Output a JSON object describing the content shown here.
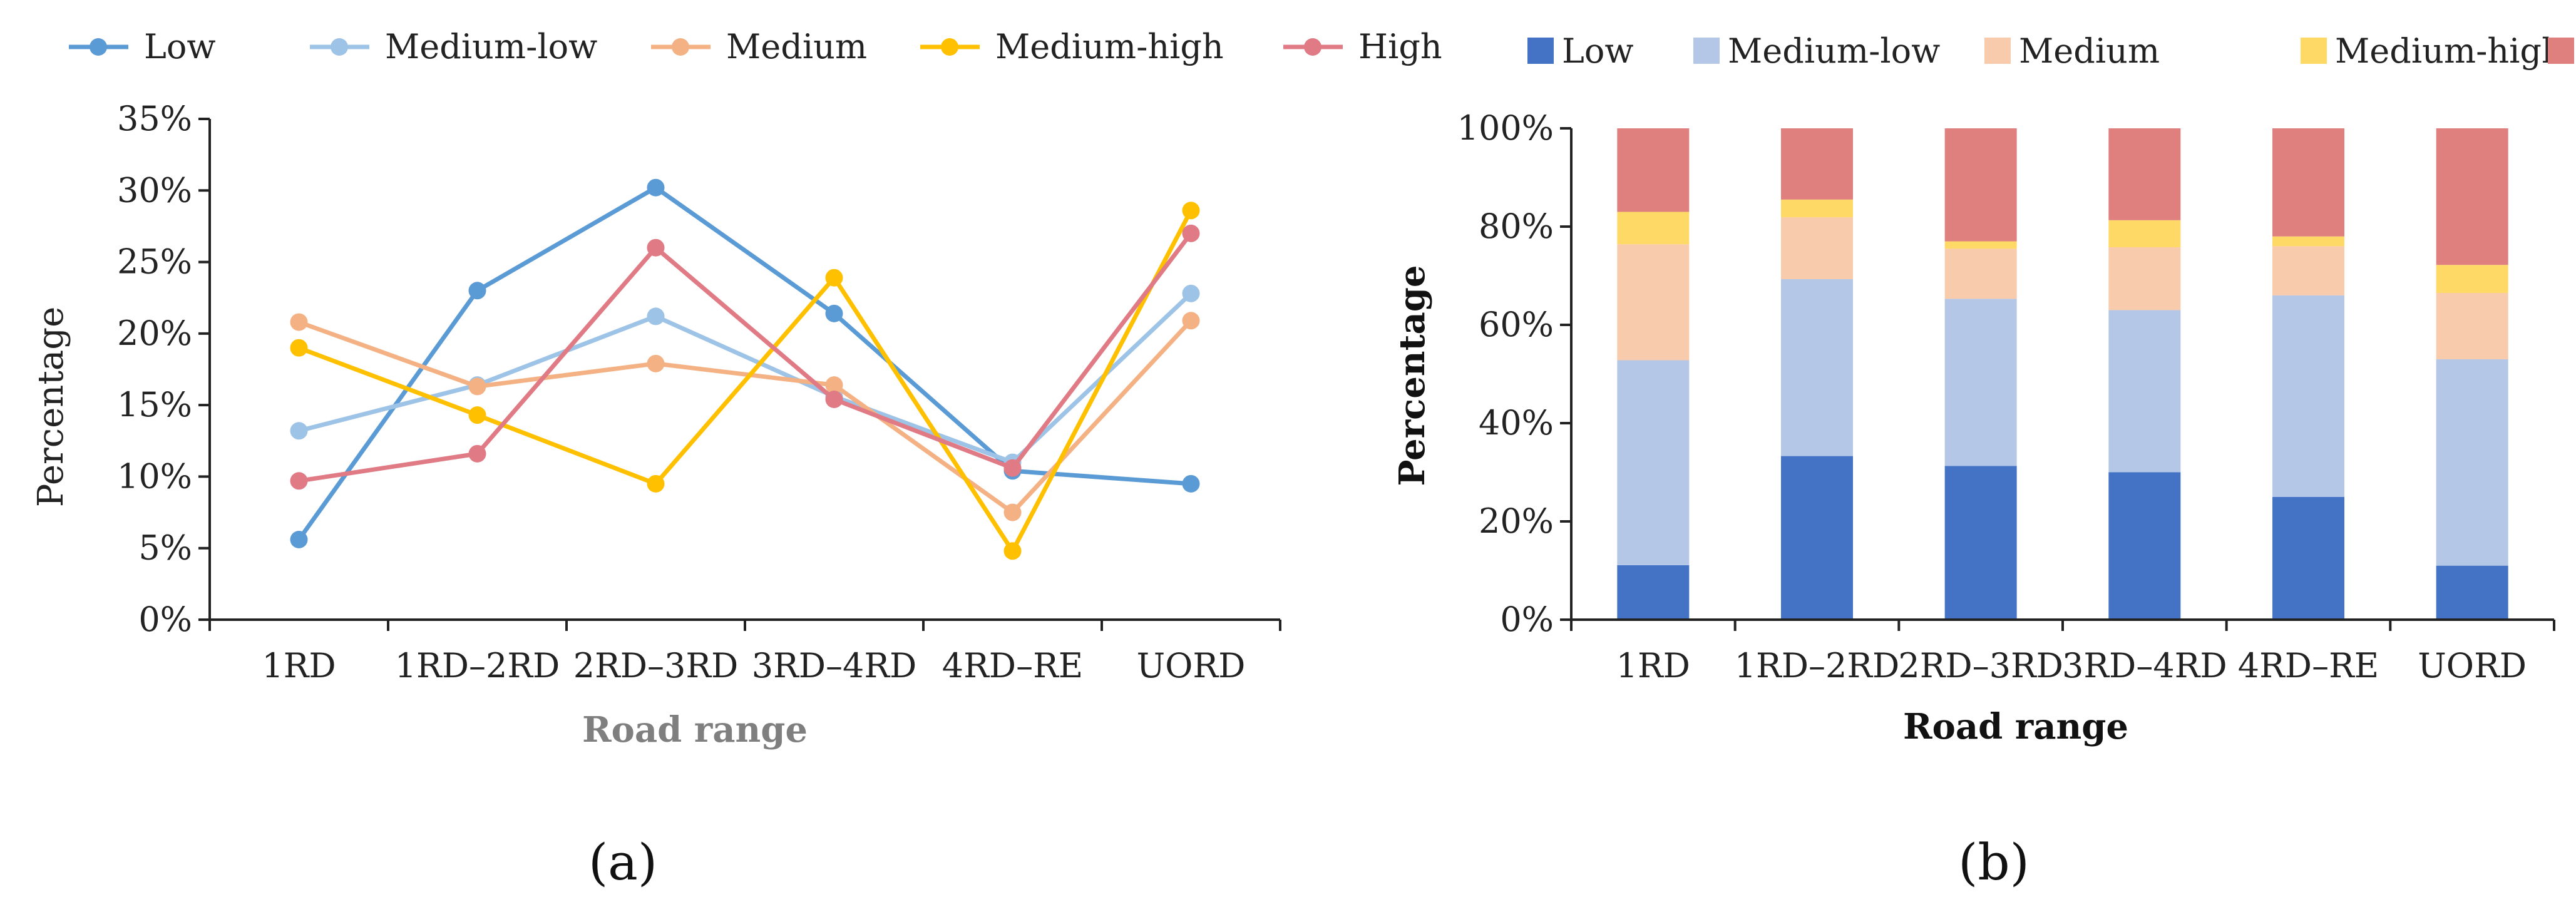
{
  "chart_data": [
    {
      "type": "line",
      "panel_label": "(a)",
      "title": "",
      "xlabel": "Road range",
      "ylabel": "Percentage",
      "categories": [
        "1RD",
        "1RD–2RD",
        "2RD–3RD",
        "3RD–4RD",
        "4RD–RE",
        "UORD"
      ],
      "ylim": [
        0,
        35
      ],
      "yticks": [
        0,
        5,
        10,
        15,
        20,
        25,
        30,
        35
      ],
      "ytick_labels": [
        "0%",
        "5%",
        "10%",
        "15%",
        "20%",
        "25%",
        "30%",
        "35%"
      ],
      "legend_position": "top",
      "grid": false,
      "series": [
        {
          "name": "Low",
          "color": "#5B9BD5",
          "values": [
            5.6,
            23.0,
            30.2,
            21.4,
            10.4,
            9.5
          ]
        },
        {
          "name": "Medium-low",
          "color": "#9DC3E6",
          "values": [
            13.2,
            16.4,
            21.2,
            15.6,
            11.0,
            22.8
          ]
        },
        {
          "name": "Medium",
          "color": "#F4B183",
          "values": [
            20.8,
            16.3,
            17.9,
            16.4,
            7.5,
            20.9
          ]
        },
        {
          "name": "Medium-high",
          "color": "#FFC000",
          "values": [
            19.0,
            14.3,
            9.5,
            23.9,
            4.8,
            28.6
          ]
        },
        {
          "name": "High",
          "color": "#E07A84",
          "values": [
            9.7,
            11.6,
            26.0,
            15.4,
            10.6,
            27.0
          ]
        }
      ]
    },
    {
      "type": "bar",
      "stacked": true,
      "panel_label": "(b)",
      "title": "",
      "xlabel": "Road range",
      "ylabel": "Percentage",
      "categories": [
        "1RD",
        "1RD–2RD",
        "2RD–3RD",
        "3RD–4RD",
        "4RD–RE",
        "UORD"
      ],
      "ylim": [
        0,
        100
      ],
      "yticks": [
        0,
        20,
        40,
        60,
        80,
        100
      ],
      "ytick_labels": [
        "0%",
        "20%",
        "40%",
        "60%",
        "80%",
        "100%"
      ],
      "legend_position": "top",
      "grid": false,
      "series": [
        {
          "name": "Low",
          "color": "#4472C4",
          "values": [
            11.1,
            33.3,
            31.3,
            30.0,
            25.0,
            11.0
          ]
        },
        {
          "name": "Medium-low",
          "color": "#B4C7E7",
          "values": [
            41.7,
            36.0,
            34.0,
            33.0,
            41.0,
            42.0
          ]
        },
        {
          "name": "Medium",
          "color": "#F8CBAD",
          "values": [
            23.6,
            12.6,
            10.2,
            12.8,
            10.0,
            13.5
          ]
        },
        {
          "name": "Medium-high",
          "color": "#FFD966",
          "values": [
            6.6,
            3.6,
            1.5,
            5.5,
            2.0,
            5.7
          ]
        },
        {
          "name": "High",
          "color": "#E0807E",
          "values": [
            17.0,
            14.5,
            23.0,
            18.7,
            22.0,
            27.8
          ]
        }
      ]
    }
  ]
}
